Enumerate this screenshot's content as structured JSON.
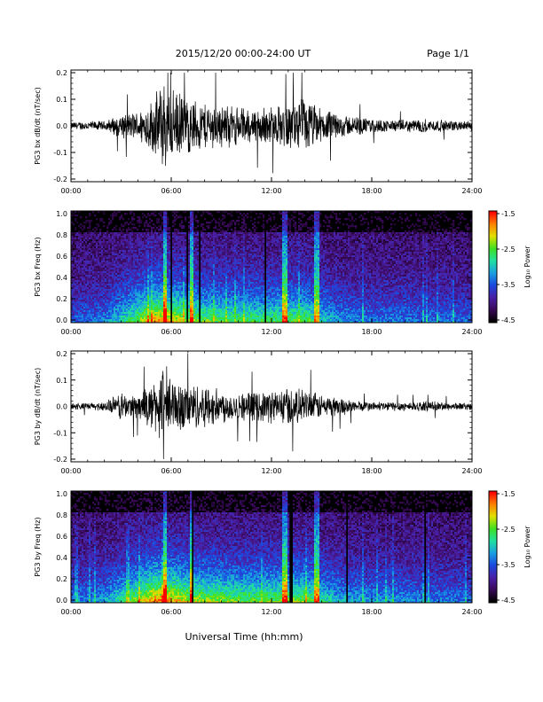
{
  "header": {
    "date_range": "2015/12/20  00:00-24:00 UT",
    "page": "Page 1/1"
  },
  "x_axis": {
    "title": "Universal Time (hh:mm)",
    "ticks": [
      "00:00",
      "06:00",
      "12:00",
      "18:00",
      "24:00"
    ]
  },
  "colorbar": {
    "label": "Log₁₀ Power",
    "ticks": [
      "-1.5",
      "-2.5",
      "-3.5",
      "-4.5"
    ],
    "range": [
      -4.5,
      -1.5
    ]
  },
  "colors": {
    "trace": "#000000",
    "colormap": [
      "#000000",
      "#3a0a5a",
      "#4a20a8",
      "#1a4ae0",
      "#1aa0e0",
      "#20e0a0",
      "#40e020",
      "#e0e000",
      "#ff8000",
      "#ff0000"
    ]
  },
  "chart_data": [
    {
      "type": "line",
      "ylabel": "PG3 bx dB/dt (nT/sec)",
      "yticks": [
        "0.2",
        "0.1",
        "0.0",
        "-0.1",
        "-0.2"
      ],
      "ylim": [
        -0.2,
        0.2
      ],
      "xlim": [
        0,
        24
      ],
      "envelope": {
        "x_hours": [
          0,
          1,
          2,
          3,
          4,
          5,
          5.5,
          6,
          7,
          8,
          9,
          10,
          11,
          12,
          13,
          14,
          15,
          16,
          17,
          18,
          19,
          20,
          21,
          22,
          23,
          24
        ],
        "amplitude": [
          0.015,
          0.02,
          0.02,
          0.05,
          0.06,
          0.12,
          0.2,
          0.15,
          0.12,
          0.1,
          0.09,
          0.08,
          0.07,
          0.08,
          0.09,
          0.12,
          0.07,
          0.05,
          0.04,
          0.03,
          0.025,
          0.025,
          0.03,
          0.025,
          0.02,
          0.02
        ]
      }
    },
    {
      "type": "heatmap",
      "ylabel": "PG3 bx Freq (Hz)",
      "yticks": [
        "1.0",
        "0.8",
        "0.6",
        "0.4",
        "0.2",
        "0.0"
      ],
      "ylim": [
        0,
        1.0
      ],
      "xlim": [
        0,
        24
      ],
      "activity": {
        "x_hours": [
          0,
          2,
          3,
          5,
          6,
          7,
          8,
          10,
          12,
          14,
          15,
          16,
          18,
          20,
          22,
          24
        ],
        "level": [
          0.25,
          0.3,
          0.45,
          0.8,
          0.75,
          0.65,
          0.6,
          0.55,
          0.55,
          0.6,
          0.45,
          0.35,
          0.3,
          0.3,
          0.28,
          0.25
        ]
      },
      "bright_streaks_hours": [
        5.6,
        7.2,
        12.8,
        14.7
      ]
    },
    {
      "type": "line",
      "ylabel": "PG3 by dB/dt (nT/sec)",
      "yticks": [
        "0.2",
        "0.1",
        "0.0",
        "-0.1",
        "-0.2"
      ],
      "ylim": [
        -0.2,
        0.2
      ],
      "xlim": [
        0,
        24
      ],
      "envelope": {
        "x_hours": [
          0,
          1,
          2,
          3,
          4,
          5,
          5.5,
          6,
          7,
          8,
          9,
          10,
          11,
          12,
          13,
          14,
          15,
          16,
          17,
          18,
          19,
          20,
          21,
          22,
          23,
          24
        ],
        "amplitude": [
          0.015,
          0.015,
          0.02,
          0.06,
          0.05,
          0.1,
          0.2,
          0.12,
          0.1,
          0.09,
          0.07,
          0.06,
          0.06,
          0.07,
          0.08,
          0.07,
          0.05,
          0.04,
          0.025,
          0.02,
          0.02,
          0.02,
          0.02,
          0.02,
          0.015,
          0.015
        ]
      }
    },
    {
      "type": "heatmap",
      "ylabel": "PG3 by Freq (Hz)",
      "yticks": [
        "1.0",
        "0.8",
        "0.6",
        "0.4",
        "0.2",
        "0.0"
      ],
      "ylim": [
        0,
        1.0
      ],
      "xlim": [
        0,
        24
      ],
      "activity": {
        "x_hours": [
          0,
          2,
          3,
          5,
          6,
          7,
          8,
          10,
          12,
          14,
          15,
          16,
          18,
          20,
          22,
          24
        ],
        "level": [
          0.3,
          0.35,
          0.5,
          0.85,
          0.8,
          0.7,
          0.65,
          0.6,
          0.6,
          0.62,
          0.5,
          0.4,
          0.35,
          0.33,
          0.3,
          0.28
        ]
      },
      "bright_streaks_hours": [
        5.6,
        7.2,
        12.8,
        14.7
      ]
    }
  ]
}
